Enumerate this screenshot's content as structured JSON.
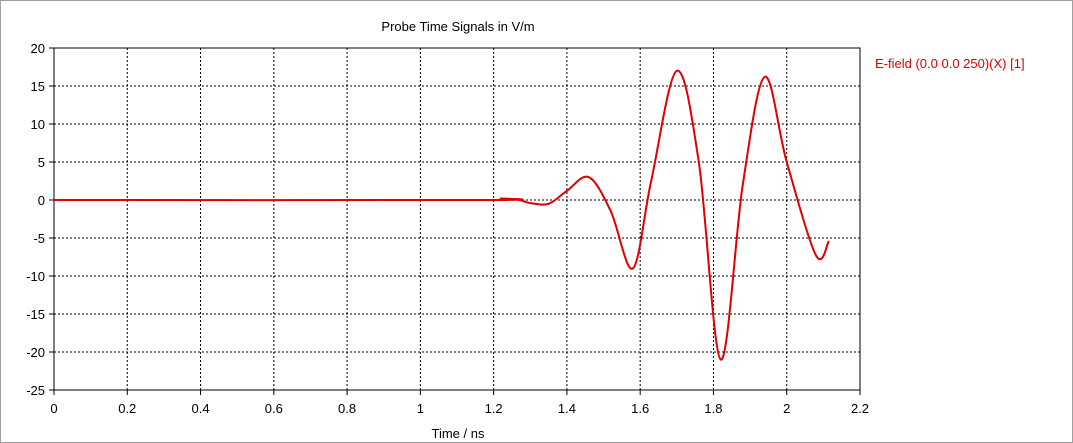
{
  "chart_data": {
    "type": "line",
    "title": "Probe Time Signals in V/m",
    "xlabel": "Time / ns",
    "ylabel": "",
    "xlim": [
      0,
      2.2
    ],
    "ylim": [
      -25,
      20
    ],
    "xticks": [
      "0",
      "0.2",
      "0.4",
      "0.6",
      "0.8",
      "1",
      "1.2",
      "1.4",
      "1.6",
      "1.8",
      "2",
      "2.2"
    ],
    "yticks": [
      "20",
      "15",
      "10",
      "5",
      "0",
      "-5",
      "-10",
      "-15",
      "-20",
      "-25"
    ],
    "grid": true,
    "legend_position": "right",
    "series": [
      {
        "name": "E-field (0.0 0.0 250)(X) [1]",
        "color": "#e00000",
        "x": [
          0,
          1.18,
          1.22,
          1.27,
          1.3,
          1.35,
          1.4,
          1.46,
          1.52,
          1.58,
          1.63,
          1.7,
          1.76,
          1.82,
          1.88,
          1.94,
          2.0,
          2.08,
          2.115
        ],
        "y": [
          0,
          0,
          0.2,
          0,
          -0.4,
          -0.5,
          1.2,
          3.0,
          -1.5,
          -9.0,
          2.5,
          17.0,
          5.0,
          -21.0,
          2.0,
          16.2,
          5.0,
          -7.3,
          -5.4
        ]
      }
    ]
  }
}
